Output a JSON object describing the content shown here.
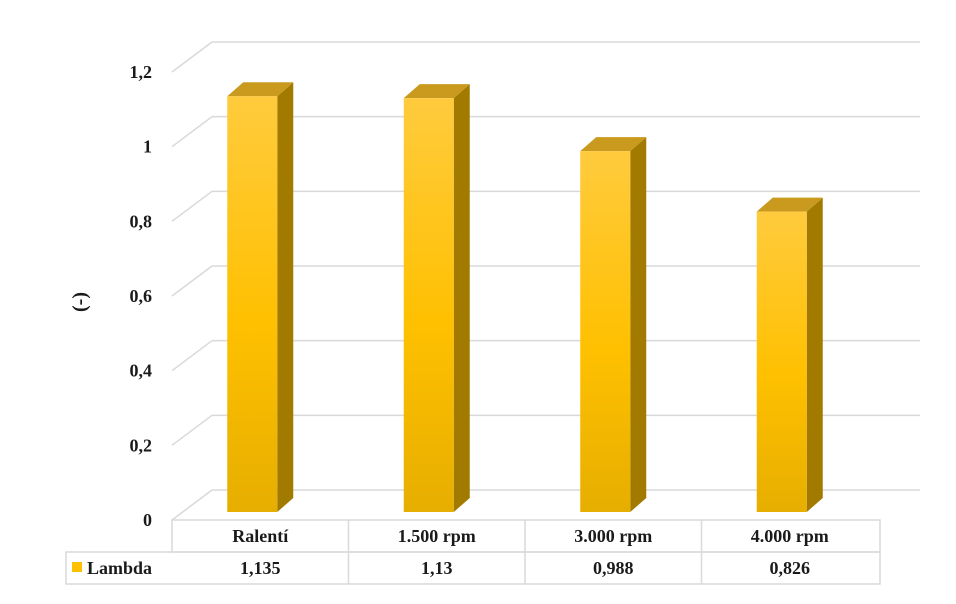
{
  "chart_data": {
    "type": "bar",
    "title": "",
    "xlabel": "",
    "ylabel": "(-)",
    "ylim": [
      0,
      1.2
    ],
    "yticks": [
      0,
      0.2,
      0.4,
      0.6,
      0.8,
      1,
      1.2
    ],
    "ytick_labels": [
      "0",
      "0,2",
      "0,4",
      "0,6",
      "0,8",
      "1",
      "1,2"
    ],
    "categories": [
      "Ralentí",
      "1.500 rpm",
      "3.000 rpm",
      "4.000 rpm"
    ],
    "series": [
      {
        "name": "Lambda",
        "values": [
          1.135,
          1.13,
          0.988,
          0.826
        ],
        "value_labels": [
          "1,135",
          "1,13",
          "0,988",
          "0,826"
        ],
        "color": "#FFC000"
      }
    ],
    "grid": true,
    "legend": "data-table",
    "style": "3d-column"
  },
  "colors": {
    "bar_front": "#FFC000",
    "bar_side": "#A27A00",
    "bar_top": "#C99A1E",
    "grid": "#D9D9D9",
    "table_border": "#D9D9D9"
  }
}
